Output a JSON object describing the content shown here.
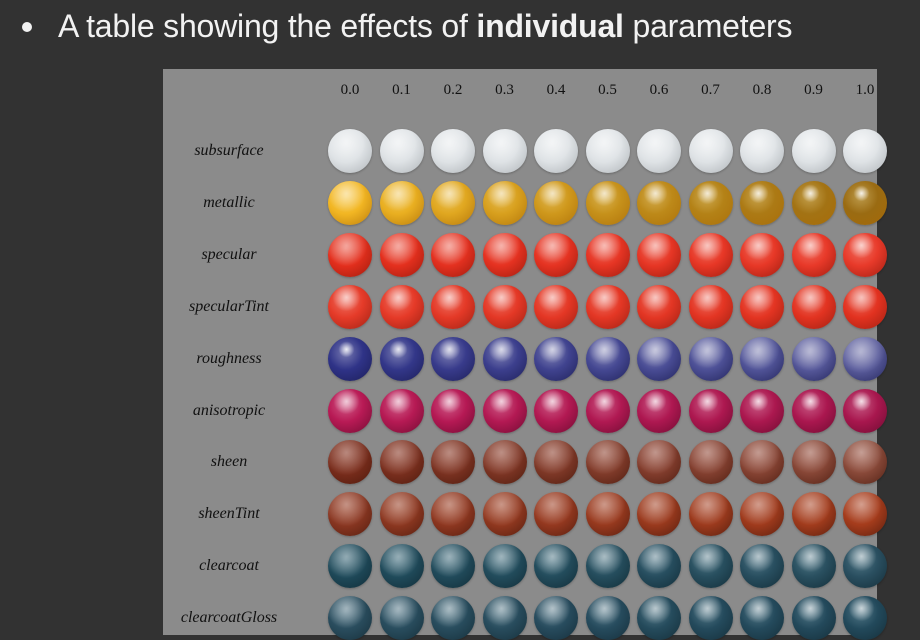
{
  "slide": {
    "bullet_prefix": "A table showing the effects of",
    "bullet_bold": "individual",
    "bullet_suffix": "parameters"
  },
  "table": {
    "columns": [
      "0.0",
      "0.1",
      "0.2",
      "0.3",
      "0.4",
      "0.5",
      "0.6",
      "0.7",
      "0.8",
      "0.9",
      "1.0"
    ],
    "rows": [
      {
        "label": "subsurface",
        "base": "#dfe3e6",
        "highlight": "#ffffff",
        "shadow": "#9fa4a8",
        "gloss_start": 0.2,
        "gloss_end": 0.2,
        "color_mix_to": "#dfe3e6"
      },
      {
        "label": "metallic",
        "base": "#f2b623",
        "highlight": "#fff4b8",
        "shadow": "#a86a05",
        "gloss_start": 0.3,
        "gloss_end": 0.9,
        "color_mix_to": "#9a6b12"
      },
      {
        "label": "specular",
        "base": "#e32f1d",
        "highlight": "#ffd0c4",
        "shadow": "#8a1408",
        "gloss_start": 0.15,
        "gloss_end": 0.6,
        "color_mix_to": "#e83a2a"
      },
      {
        "label": "specularTint",
        "base": "#e53b29",
        "highlight": "#ffd5cc",
        "shadow": "#8c1a0d",
        "gloss_start": 0.55,
        "gloss_end": 0.45,
        "color_mix_to": "#e23220"
      },
      {
        "label": "roughness",
        "base": "#2f3387",
        "highlight": "#ffffff",
        "shadow": "#15174a",
        "gloss_start": 0.9,
        "gloss_end": 0.0,
        "color_mix_to": "#5a5c9c"
      },
      {
        "label": "anisotropic",
        "base": "#b81a55",
        "highlight": "#ffd3e5",
        "shadow": "#5c0828",
        "gloss_start": 0.6,
        "gloss_end": 0.8,
        "color_mix_to": "#a8174e"
      },
      {
        "label": "sheen",
        "base": "#7a2d1c",
        "highlight": "#b86a56",
        "shadow": "#401408",
        "gloss_start": 0.05,
        "gloss_end": 0.15,
        "color_mix_to": "#8a4a3a"
      },
      {
        "label": "sheenTint",
        "base": "#8a3722",
        "highlight": "#c46a4c",
        "shadow": "#451509",
        "gloss_start": 0.1,
        "gloss_end": 0.2,
        "color_mix_to": "#a53c1c"
      },
      {
        "label": "clearcoat",
        "base": "#1f4a5a",
        "highlight": "#9fc6d3",
        "shadow": "#0c232c",
        "gloss_start": 0.1,
        "gloss_end": 0.5,
        "color_mix_to": "#2a4f60"
      },
      {
        "label": "clearcoatGloss",
        "base": "#2a4d5e",
        "highlight": "#a9ccd8",
        "shadow": "#10262f",
        "gloss_start": 0.2,
        "gloss_end": 0.6,
        "color_mix_to": "#22495b"
      }
    ]
  }
}
